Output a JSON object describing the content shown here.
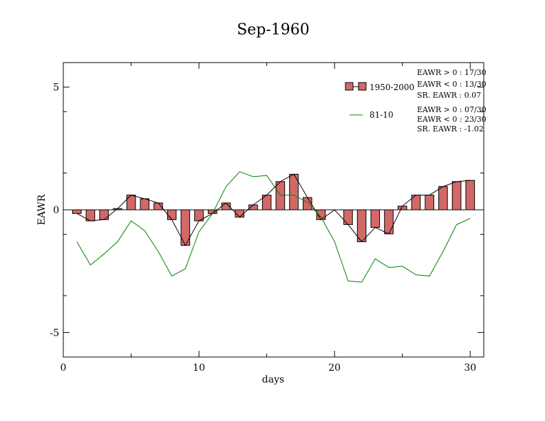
{
  "chart_data": {
    "type": "bar",
    "title": "Sep-1960",
    "xlabel": "days",
    "ylabel": "EAWR",
    "xlim": [
      0,
      31
    ],
    "ylim": [
      -6,
      6
    ],
    "x_ticks": [
      "0",
      "10",
      "20",
      "30"
    ],
    "y_ticks": [
      "5",
      "0",
      "-5"
    ],
    "x": [
      1,
      2,
      3,
      4,
      5,
      6,
      7,
      8,
      9,
      10,
      11,
      12,
      13,
      14,
      15,
      16,
      17,
      18,
      19,
      20,
      21,
      22,
      23,
      24,
      25,
      26,
      27,
      28,
      29,
      30
    ],
    "series": [
      {
        "name": "1950-2000",
        "kind": "bar",
        "color": "#f08080",
        "values": [
          -0.15,
          -0.45,
          -0.4,
          0.05,
          0.6,
          0.45,
          0.28,
          -0.4,
          -1.45,
          -0.45,
          -0.15,
          0.28,
          -0.3,
          0.2,
          0.6,
          1.15,
          1.45,
          0.5,
          -0.4,
          0.0,
          -0.6,
          -1.3,
          -0.72,
          -0.98,
          0.15,
          0.6,
          0.6,
          0.95,
          1.15,
          1.2
        ]
      },
      {
        "name": "81-10",
        "kind": "line",
        "color": "#008000",
        "values": [
          -1.3,
          -2.25,
          -1.8,
          -1.3,
          -0.45,
          -0.85,
          -1.7,
          -2.7,
          -2.4,
          -0.9,
          -0.15,
          0.95,
          1.55,
          1.35,
          1.4,
          0.6,
          0.6,
          0.3,
          -0.3,
          -1.3,
          -2.9,
          -2.95,
          -2.0,
          -2.35,
          -2.3,
          -2.65,
          -2.7,
          -1.7,
          -0.6,
          -0.35
        ]
      }
    ],
    "legend_position": "top-right",
    "stats": {
      "s1": [
        "EAWR > 0 : 17/30",
        "EAWR < 0 : 13/30",
        "SR. EAWR :  0.07"
      ],
      "s2": [
        "EAWR > 0 : 07/30",
        "EAWR < 0 : 23/30",
        "SR. EAWR : -1.02"
      ]
    },
    "grid": false
  }
}
